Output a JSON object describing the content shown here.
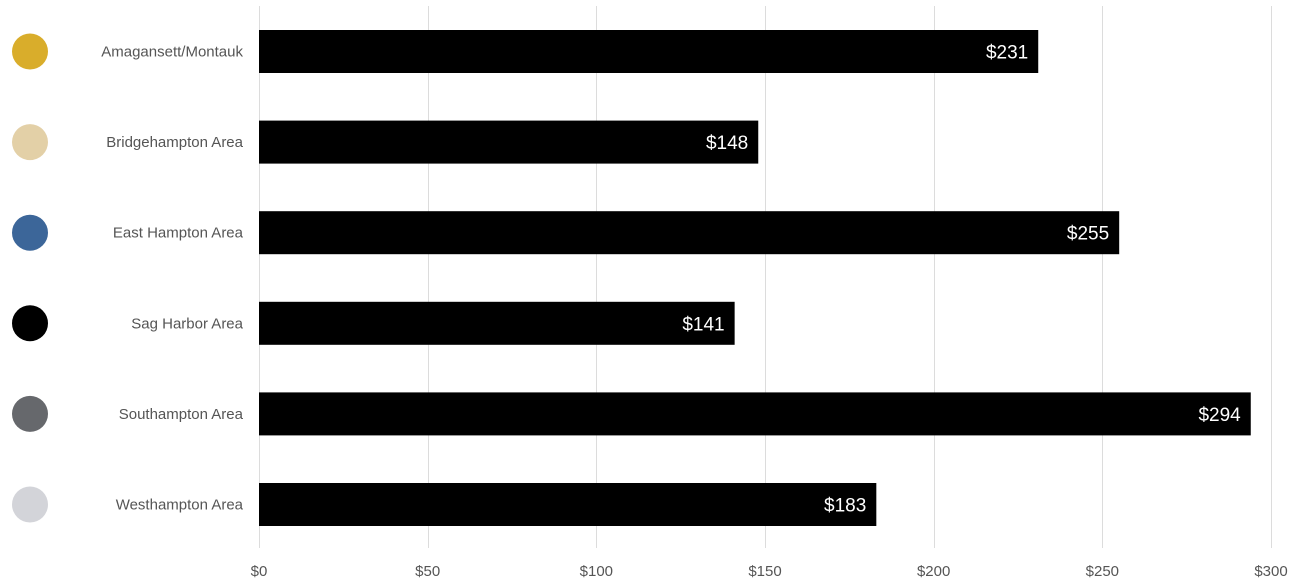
{
  "chart_data": {
    "type": "bar",
    "orientation": "horizontal",
    "categories": [
      "Amagansett/Montauk",
      "Bridgehampton Area",
      "East Hampton Area",
      "Sag Harbor Area",
      "Southampton Area",
      "Westhampton Area"
    ],
    "values": [
      231,
      148,
      255,
      141,
      294,
      183
    ],
    "value_labels": [
      "$231",
      "$148",
      "$255",
      "$141",
      "$294",
      "$183"
    ],
    "category_colors": [
      "#d9ad2b",
      "#e3d0a7",
      "#3c6699",
      "#000000",
      "#66686c",
      "#d3d4d9"
    ],
    "bar_color": "#000000",
    "xlim": [
      0,
      300
    ],
    "x_ticks": [
      0,
      50,
      100,
      150,
      200,
      250,
      300
    ],
    "x_tick_labels": [
      "$0",
      "$50",
      "$100",
      "$150",
      "$200",
      "$250",
      "$300"
    ],
    "grid": true,
    "title": "",
    "xlabel": "",
    "ylabel": ""
  }
}
